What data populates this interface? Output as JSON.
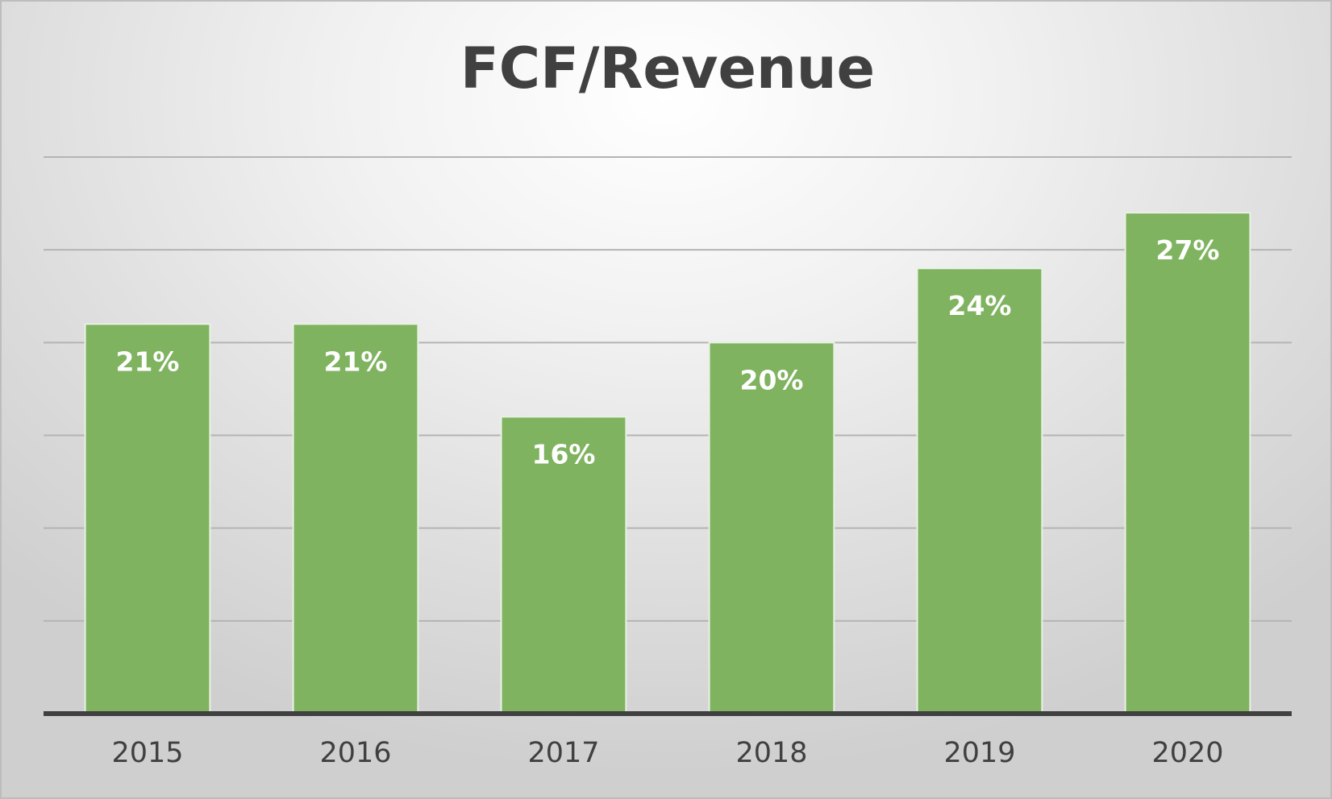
{
  "chart_data": {
    "type": "bar",
    "title": "FCF/Revenue",
    "categories": [
      "2015",
      "2016",
      "2017",
      "2018",
      "2019",
      "2020"
    ],
    "values": [
      0.21,
      0.21,
      0.16,
      0.2,
      0.24,
      0.27
    ],
    "data_labels": [
      "21%",
      "21%",
      "16%",
      "20%",
      "24%",
      "27%"
    ],
    "ylim": [
      0,
      0.3
    ],
    "y_grid_step": 0.05,
    "grid": true,
    "legend": "none",
    "colors": {
      "bar": "#7fb35f",
      "title": "#404040",
      "axis": "#404040"
    }
  }
}
